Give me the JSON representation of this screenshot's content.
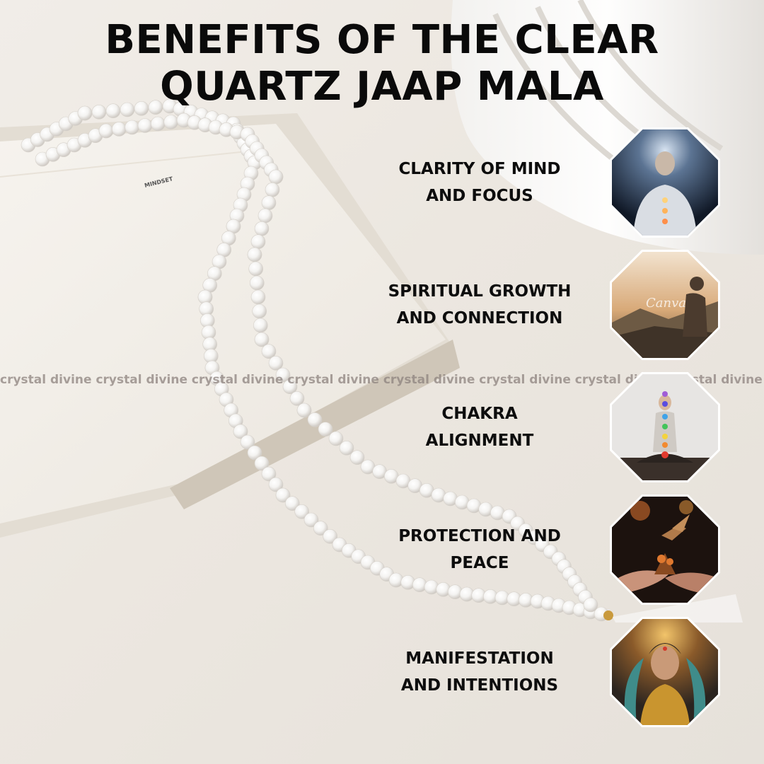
{
  "title": {
    "line1": "BENEFITS OF THE CLEAR",
    "line2": "QUARTZ JAAP MALA"
  },
  "book": {
    "page_label": "MINDSET"
  },
  "watermark": "crystal divine crystal divine crystal divine crystal divine crystal divine crystal divine crystal divine crystal divine",
  "benefits": [
    {
      "label": "CLARITY OF MIND\nAND FOCUS",
      "icon": "meditating-man-light-icon"
    },
    {
      "label": "SPIRITUAL GROWTH\nAND CONNECTION",
      "icon": "praying-mountain-sunrise-icon",
      "overlay_text": "Canva"
    },
    {
      "label": "CHAKRA\nALIGNMENT",
      "icon": "chakra-meditation-icon"
    },
    {
      "label": "PROTECTION AND\nPEACE",
      "icon": "hands-hummingbird-icon"
    },
    {
      "label": "MANIFESTATION\nAND INTENTIONS",
      "icon": "goddess-portrait-icon"
    }
  ],
  "colors": {
    "text": "#0a0a0a",
    "background": "#ece7e0",
    "watermark": "#8c827d"
  }
}
